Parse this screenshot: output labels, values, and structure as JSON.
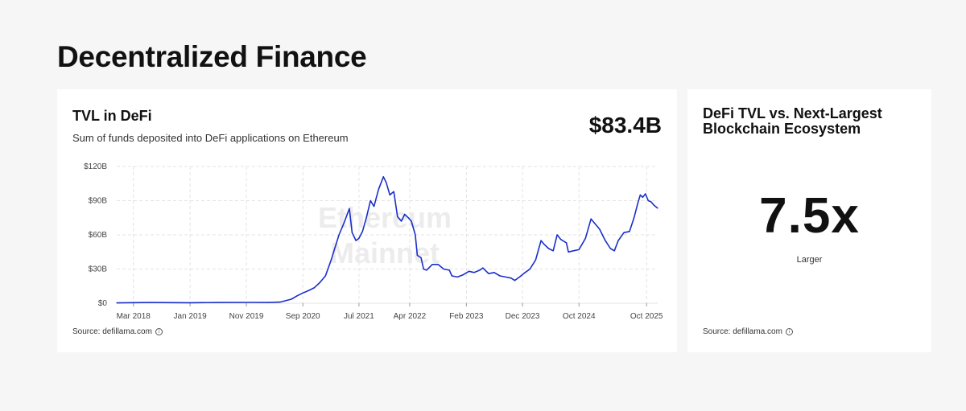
{
  "page": {
    "title": "Decentralized Finance"
  },
  "main_card": {
    "title": "TVL in DeFi",
    "subtitle": "Sum of funds deposited into DeFi applications on Ethereum",
    "value": "$83.4B",
    "watermark": [
      "Ethereum",
      "Mainnet"
    ],
    "source": "Source: defillama.com",
    "info_icon": "info-icon"
  },
  "side_card": {
    "title": "DeFi TVL vs. Next-Largest Blockchain Ecosystem",
    "value": "7.5x",
    "caption": "Larger",
    "source": "Source: defillama.com",
    "info_icon": "info-icon"
  },
  "colors": {
    "line": "#1a2fc9",
    "grid": "#e3e3e3",
    "background": "#f6f6f6",
    "card": "#ffffff"
  },
  "chart_data": {
    "type": "line",
    "title": "TVL in DeFi",
    "xlabel": "",
    "ylabel": "",
    "x_range": [
      "2017-12-01",
      "2025-11-30"
    ],
    "ylim": [
      0,
      120
    ],
    "y_unit": "billions USD",
    "yticks": [
      "$0",
      "$30B",
      "$60B",
      "$90B",
      "$120B"
    ],
    "xticks": [
      {
        "label": "Mar 2018",
        "date": "2018-03-01"
      },
      {
        "label": "Jan 2019",
        "date": "2019-01-01"
      },
      {
        "label": "Nov 2019",
        "date": "2019-11-01"
      },
      {
        "label": "Sep 2020",
        "date": "2020-09-01"
      },
      {
        "label": "Jul 2021",
        "date": "2021-07-01"
      },
      {
        "label": "Apr 2022",
        "date": "2022-04-01"
      },
      {
        "label": "Feb 2023",
        "date": "2023-02-01"
      },
      {
        "label": "Dec 2023",
        "date": "2023-12-01"
      },
      {
        "label": "Oct 2024",
        "date": "2024-10-01"
      },
      {
        "label": "Oct 2025",
        "date": "2025-10-01"
      }
    ],
    "grid": true,
    "legend": "none",
    "series": [
      {
        "points": [
          [
            "2017-12-01",
            0.3
          ],
          [
            "2018-06-01",
            0.6
          ],
          [
            "2019-01-01",
            0.4
          ],
          [
            "2019-06-01",
            0.6
          ],
          [
            "2019-12-01",
            0.7
          ],
          [
            "2020-03-01",
            0.6
          ],
          [
            "2020-05-01",
            1.0
          ],
          [
            "2020-07-01",
            3.5
          ],
          [
            "2020-08-01",
            6.5
          ],
          [
            "2020-09-01",
            9.0
          ],
          [
            "2020-10-01",
            11.0
          ],
          [
            "2020-11-01",
            13.5
          ],
          [
            "2020-12-01",
            18.0
          ],
          [
            "2021-01-01",
            24.0
          ],
          [
            "2021-02-01",
            38.0
          ],
          [
            "2021-02-20",
            48.0
          ],
          [
            "2021-03-15",
            60.0
          ],
          [
            "2021-04-10",
            70.0
          ],
          [
            "2021-05-10",
            83.0
          ],
          [
            "2021-05-25",
            62.0
          ],
          [
            "2021-06-15",
            55.0
          ],
          [
            "2021-07-01",
            57.0
          ],
          [
            "2021-07-20",
            63.0
          ],
          [
            "2021-08-10",
            75.0
          ],
          [
            "2021-09-01",
            90.0
          ],
          [
            "2021-09-20",
            85.0
          ],
          [
            "2021-10-15",
            100.0
          ],
          [
            "2021-11-10",
            111.0
          ],
          [
            "2021-11-25",
            106.0
          ],
          [
            "2021-12-15",
            95.0
          ],
          [
            "2022-01-05",
            98.0
          ],
          [
            "2022-01-25",
            76.0
          ],
          [
            "2022-02-15",
            72.0
          ],
          [
            "2022-03-05",
            78.0
          ],
          [
            "2022-03-25",
            75.0
          ],
          [
            "2022-04-10",
            72.0
          ],
          [
            "2022-05-01",
            60.0
          ],
          [
            "2022-05-12",
            42.0
          ],
          [
            "2022-06-01",
            40.0
          ],
          [
            "2022-06-15",
            30.0
          ],
          [
            "2022-07-01",
            29.0
          ],
          [
            "2022-08-01",
            34.0
          ],
          [
            "2022-09-01",
            34.0
          ],
          [
            "2022-10-01",
            30.0
          ],
          [
            "2022-11-01",
            29.0
          ],
          [
            "2022-11-15",
            24.0
          ],
          [
            "2022-12-15",
            23.0
          ],
          [
            "2023-01-15",
            25.0
          ],
          [
            "2023-02-15",
            28.0
          ],
          [
            "2023-03-15",
            27.0
          ],
          [
            "2023-04-15",
            29.0
          ],
          [
            "2023-05-01",
            31.0
          ],
          [
            "2023-06-01",
            26.0
          ],
          [
            "2023-07-01",
            27.0
          ],
          [
            "2023-08-01",
            24.0
          ],
          [
            "2023-09-01",
            23.0
          ],
          [
            "2023-10-01",
            22.0
          ],
          [
            "2023-10-20",
            20.0
          ],
          [
            "2023-11-15",
            23.0
          ],
          [
            "2023-12-15",
            27.0
          ],
          [
            "2024-01-10",
            30.0
          ],
          [
            "2024-02-10",
            38.0
          ],
          [
            "2024-03-10",
            55.0
          ],
          [
            "2024-03-25",
            52.0
          ],
          [
            "2024-04-20",
            48.0
          ],
          [
            "2024-05-15",
            46.0
          ],
          [
            "2024-06-05",
            60.0
          ],
          [
            "2024-06-25",
            56.0
          ],
          [
            "2024-07-25",
            53.0
          ],
          [
            "2024-08-05",
            45.0
          ],
          [
            "2024-09-01",
            46.0
          ],
          [
            "2024-10-01",
            47.0
          ],
          [
            "2024-11-05",
            57.0
          ],
          [
            "2024-12-05",
            74.0
          ],
          [
            "2024-12-25",
            70.0
          ],
          [
            "2025-01-20",
            65.0
          ],
          [
            "2025-02-20",
            55.0
          ],
          [
            "2025-03-20",
            48.0
          ],
          [
            "2025-04-10",
            46.0
          ],
          [
            "2025-05-01",
            55.0
          ],
          [
            "2025-06-01",
            62.0
          ],
          [
            "2025-07-01",
            63.0
          ],
          [
            "2025-07-25",
            75.0
          ],
          [
            "2025-08-15",
            88.0
          ],
          [
            "2025-08-28",
            95.0
          ],
          [
            "2025-09-10",
            93.0
          ],
          [
            "2025-09-25",
            96.0
          ],
          [
            "2025-10-10",
            90.0
          ],
          [
            "2025-10-25",
            89.0
          ],
          [
            "2025-11-10",
            86.0
          ],
          [
            "2025-11-30",
            83.4
          ]
        ]
      }
    ]
  }
}
